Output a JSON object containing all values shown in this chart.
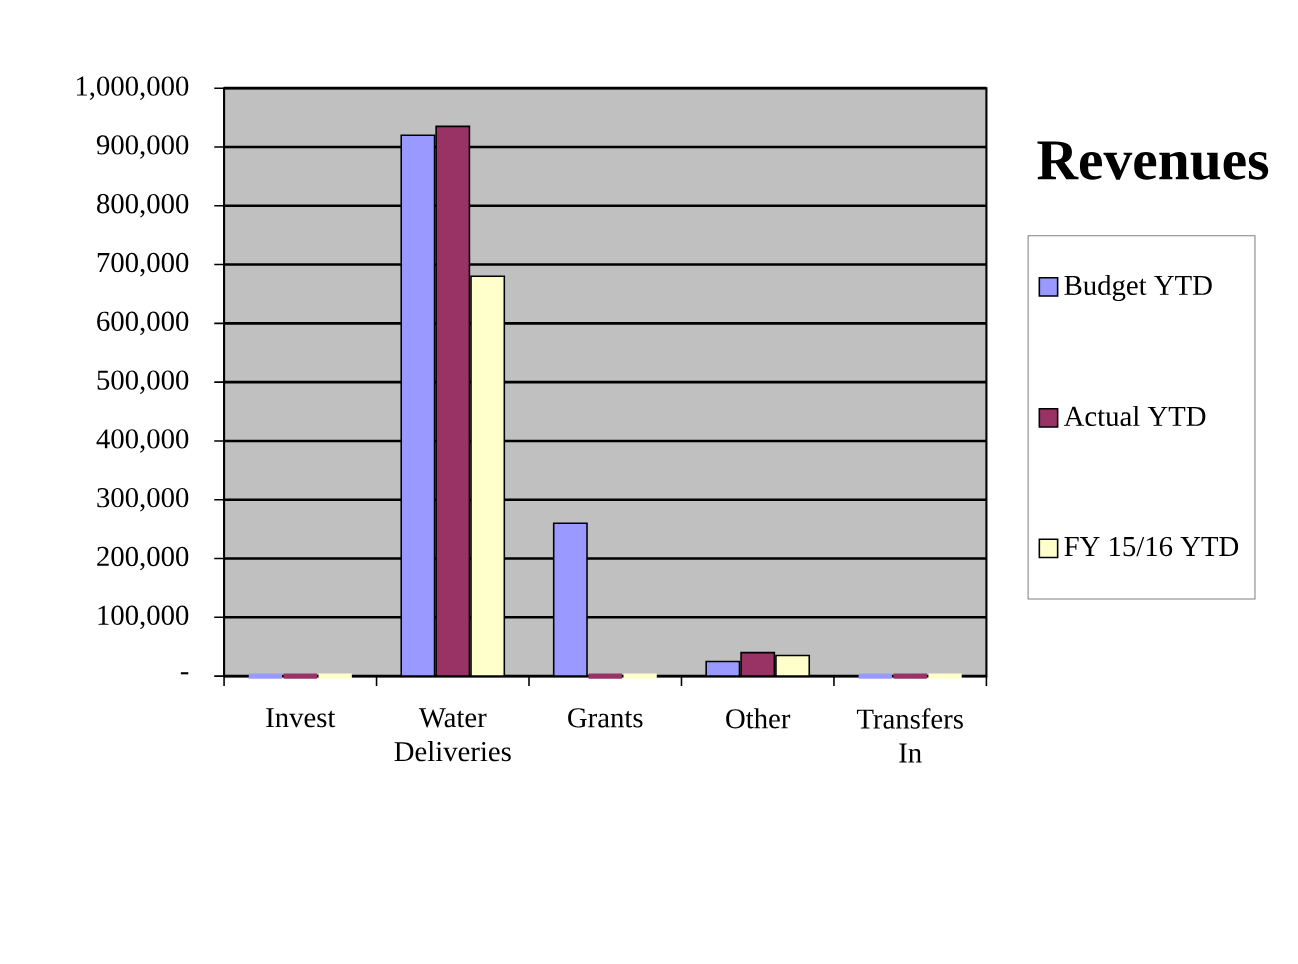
{
  "chart_data": {
    "type": "bar",
    "title": "Revenues",
    "categories": [
      "Invest",
      "Water Deliveries",
      "Grants",
      "Other",
      "Transfers In"
    ],
    "series": [
      {
        "name": "Budget YTD",
        "color": "#9999ff",
        "values": [
          0,
          920000,
          260000,
          25000,
          0
        ]
      },
      {
        "name": "Actual YTD",
        "color": "#993366",
        "values": [
          0,
          935000,
          0,
          40000,
          0
        ]
      },
      {
        "name": "FY 15/16 YTD",
        "color": "#ffffcc",
        "values": [
          0,
          680000,
          0,
          35000,
          0
        ]
      }
    ],
    "ylim": [
      0,
      1000000
    ],
    "yticks": [
      {
        "value": 0,
        "label": "-"
      },
      {
        "value": 100000,
        "label": "100,000"
      },
      {
        "value": 200000,
        "label": "200,000"
      },
      {
        "value": 300000,
        "label": "300,000"
      },
      {
        "value": 400000,
        "label": "400,000"
      },
      {
        "value": 500000,
        "label": "500,000"
      },
      {
        "value": 600000,
        "label": "600,000"
      },
      {
        "value": 700000,
        "label": "700,000"
      },
      {
        "value": 800000,
        "label": "800,000"
      },
      {
        "value": 900000,
        "label": "900,000"
      },
      {
        "value": 1000000,
        "label": "1,000,000"
      }
    ],
    "grid": "y",
    "legend": "right"
  }
}
